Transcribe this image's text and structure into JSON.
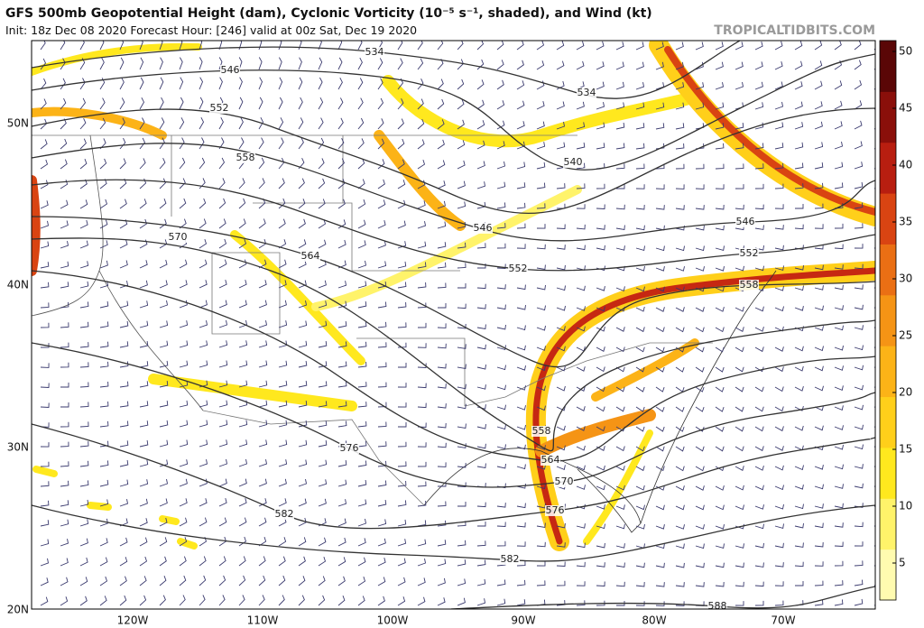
{
  "header": {
    "title": "GFS 500mb Geopotential Height (dam), Cyclonic Vorticity (10⁻⁵ s⁻¹, shaded), and Wind (kt)",
    "init": "Init: 18z Dec 08 2020   Forecast Hour: [246]   valid at 00z Sat, Dec 19 2020",
    "site": "TROPICALTIDBITS.COM"
  },
  "map": {
    "lat_labels": [
      "50N",
      "40N",
      "30N",
      "20N"
    ],
    "lon_labels": [
      "120W",
      "110W",
      "100W",
      "90W",
      "80W",
      "70W"
    ],
    "contour_labels": [
      "534",
      "546",
      "552",
      "558",
      "534",
      "540",
      "570",
      "564",
      "546",
      "552",
      "546",
      "552",
      "558",
      "576",
      "558",
      "564",
      "570",
      "576",
      "582",
      "582",
      "588"
    ]
  },
  "colorbar": {
    "ticks": [
      5,
      10,
      15,
      20,
      25,
      30,
      35,
      40,
      45,
      50
    ],
    "colors": [
      "#fffbb0",
      "#fff36a",
      "#ffe81e",
      "#ffcf1a",
      "#fcb317",
      "#f59415",
      "#ea6f14",
      "#d94412",
      "#b81e10",
      "#8a0f0a",
      "#5a0606"
    ]
  }
}
